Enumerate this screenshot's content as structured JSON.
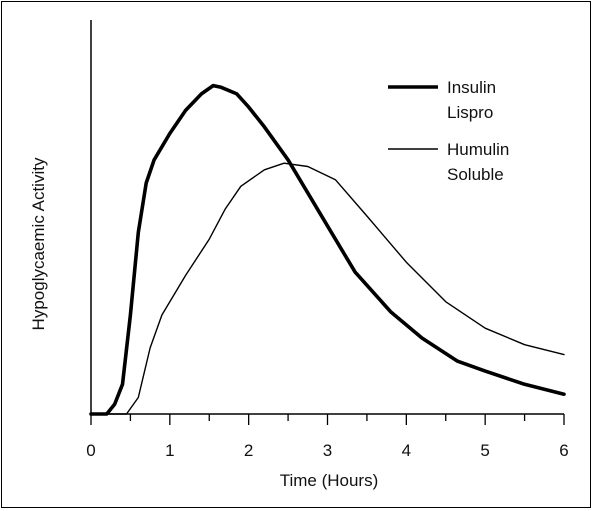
{
  "chart_data": {
    "type": "line",
    "title": "",
    "xlabel": "Time (Hours)",
    "ylabel": "Hypoglycaemic Activity",
    "xlim": [
      0,
      6
    ],
    "ylim": [
      0,
      1
    ],
    "x_ticks": [
      "0",
      "1",
      "2",
      "3",
      "4",
      "5",
      "6"
    ],
    "grid": false,
    "legend_position": "top-right",
    "series": [
      {
        "name_lines": [
          "Insulin",
          "Lispro"
        ],
        "style": "thick",
        "color": "#000000",
        "x": [
          0,
          0.2,
          0.3,
          0.4,
          0.5,
          0.6,
          0.7,
          0.8,
          1.0,
          1.2,
          1.4,
          1.55,
          1.65,
          1.85,
          2.0,
          2.2,
          2.5,
          3.0,
          3.35,
          3.8,
          4.2,
          4.65,
          5.0,
          5.5,
          6.0
        ],
        "y": [
          0,
          0,
          0.03,
          0.09,
          0.3,
          0.55,
          0.7,
          0.77,
          0.85,
          0.92,
          0.97,
          0.995,
          0.99,
          0.97,
          0.93,
          0.87,
          0.77,
          0.57,
          0.43,
          0.31,
          0.23,
          0.16,
          0.13,
          0.09,
          0.06
        ]
      },
      {
        "name_lines": [
          "Humulin",
          "Soluble"
        ],
        "style": "thin",
        "color": "#000000",
        "x": [
          0,
          0.45,
          0.6,
          0.75,
          0.9,
          1.2,
          1.5,
          1.7,
          1.9,
          2.2,
          2.45,
          2.75,
          3.1,
          3.5,
          4.0,
          4.5,
          5.0,
          5.5,
          6.0
        ],
        "y": [
          0,
          0,
          0.05,
          0.2,
          0.3,
          0.42,
          0.53,
          0.62,
          0.69,
          0.74,
          0.76,
          0.75,
          0.71,
          0.6,
          0.46,
          0.34,
          0.26,
          0.21,
          0.18
        ]
      }
    ]
  }
}
